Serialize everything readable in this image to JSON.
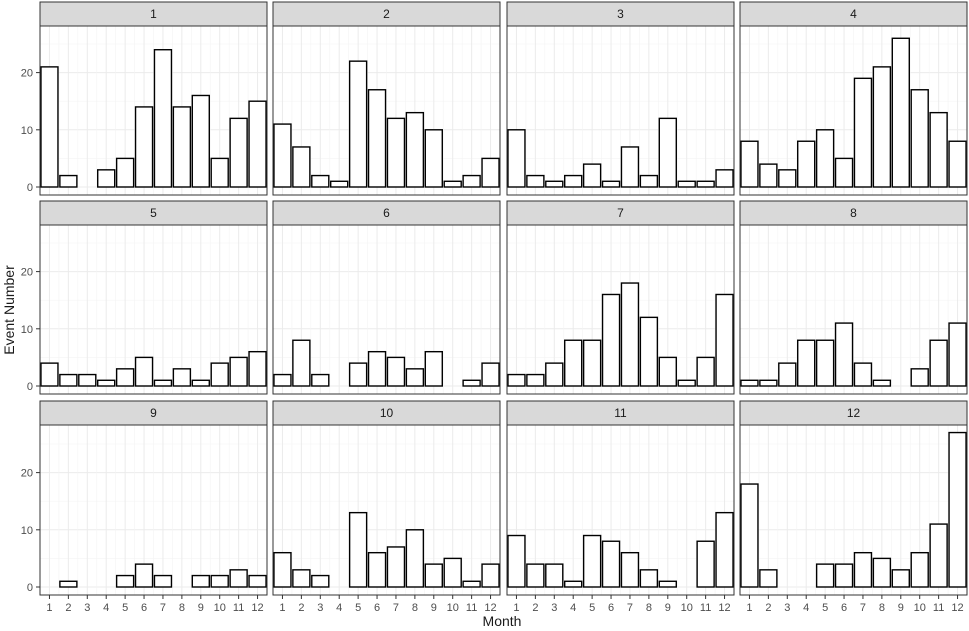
{
  "chart_data": {
    "type": "bar",
    "layout": "facet-grid 3 rows x 4 columns",
    "xlabel": "Month",
    "ylabel": "Event Number",
    "categories": [
      "1",
      "2",
      "3",
      "4",
      "5",
      "6",
      "7",
      "8",
      "9",
      "10",
      "11",
      "12"
    ],
    "ylim": [
      0,
      28
    ],
    "yticks": [
      0,
      10,
      20
    ],
    "grid": true,
    "panels": [
      {
        "label": "1",
        "values": [
          21,
          2,
          0,
          3,
          5,
          14,
          24,
          14,
          16,
          5,
          12,
          15
        ]
      },
      {
        "label": "2",
        "values": [
          11,
          7,
          2,
          1,
          22,
          17,
          12,
          13,
          10,
          1,
          2,
          5
        ]
      },
      {
        "label": "3",
        "values": [
          10,
          2,
          1,
          2,
          4,
          1,
          7,
          2,
          12,
          1,
          1,
          3
        ]
      },
      {
        "label": "4",
        "values": [
          8,
          4,
          3,
          8,
          10,
          5,
          19,
          21,
          26,
          17,
          13,
          8
        ]
      },
      {
        "label": "5",
        "values": [
          4,
          2,
          2,
          1,
          3,
          5,
          1,
          3,
          1,
          4,
          5,
          6
        ]
      },
      {
        "label": "6",
        "values": [
          2,
          8,
          2,
          0,
          4,
          6,
          5,
          3,
          6,
          0,
          1,
          4
        ]
      },
      {
        "label": "7",
        "values": [
          2,
          2,
          4,
          8,
          8,
          16,
          18,
          12,
          5,
          1,
          5,
          16
        ]
      },
      {
        "label": "8",
        "values": [
          1,
          1,
          4,
          8,
          8,
          11,
          4,
          1,
          0,
          3,
          8,
          11
        ]
      },
      {
        "label": "9",
        "values": [
          0,
          1,
          0,
          0,
          2,
          4,
          2,
          0,
          2,
          2,
          3,
          2
        ]
      },
      {
        "label": "10",
        "values": [
          6,
          3,
          2,
          0,
          13,
          6,
          7,
          10,
          4,
          5,
          1,
          4
        ]
      },
      {
        "label": "11",
        "values": [
          9,
          4,
          4,
          1,
          9,
          8,
          6,
          3,
          1,
          0,
          8,
          13
        ]
      },
      {
        "label": "12",
        "values": [
          18,
          3,
          0,
          0,
          4,
          4,
          6,
          5,
          3,
          6,
          11,
          27
        ]
      }
    ],
    "colors": {
      "bar_fill": "#ffffff",
      "bar_stroke": "#000000",
      "strip_fill": "#d9d9d9",
      "panel_border": "#333333",
      "grid": "#ebebeb"
    }
  }
}
